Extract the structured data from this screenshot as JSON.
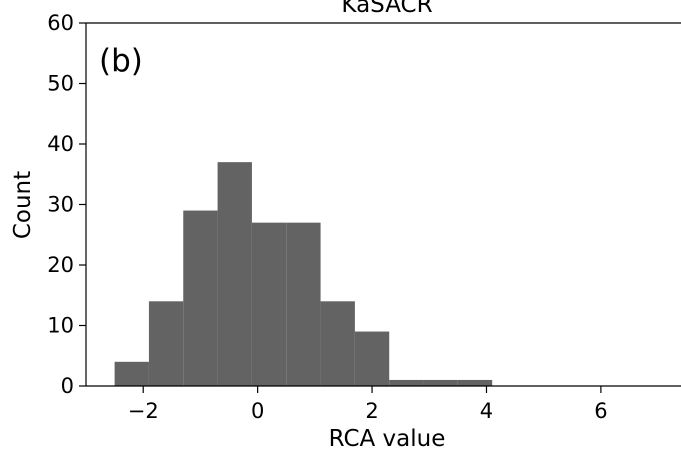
{
  "chart_data": {
    "type": "bar",
    "title": "KaSACR",
    "panel_label": "(b)",
    "xlabel": "RCA value",
    "ylabel": "Count",
    "xlim": [
      -3.0,
      7.4
    ],
    "ylim": [
      0,
      60
    ],
    "xticks": [
      -2,
      0,
      2,
      4,
      6
    ],
    "xtick_labels": [
      "−2",
      "0",
      "2",
      "4",
      "6"
    ],
    "yticks": [
      0,
      10,
      20,
      30,
      40,
      50,
      60
    ],
    "ytick_labels": [
      "0",
      "10",
      "20",
      "30",
      "40",
      "50",
      "60"
    ],
    "bin_edges": [
      -2.5,
      -1.9,
      -1.3,
      -0.7,
      -0.1,
      0.5,
      1.1,
      1.7,
      2.3,
      2.9,
      3.5,
      4.1
    ],
    "values": [
      4,
      14,
      29,
      37,
      27,
      27,
      14,
      9,
      1,
      1,
      1
    ],
    "bar_color": "#636363",
    "grid": false
  }
}
